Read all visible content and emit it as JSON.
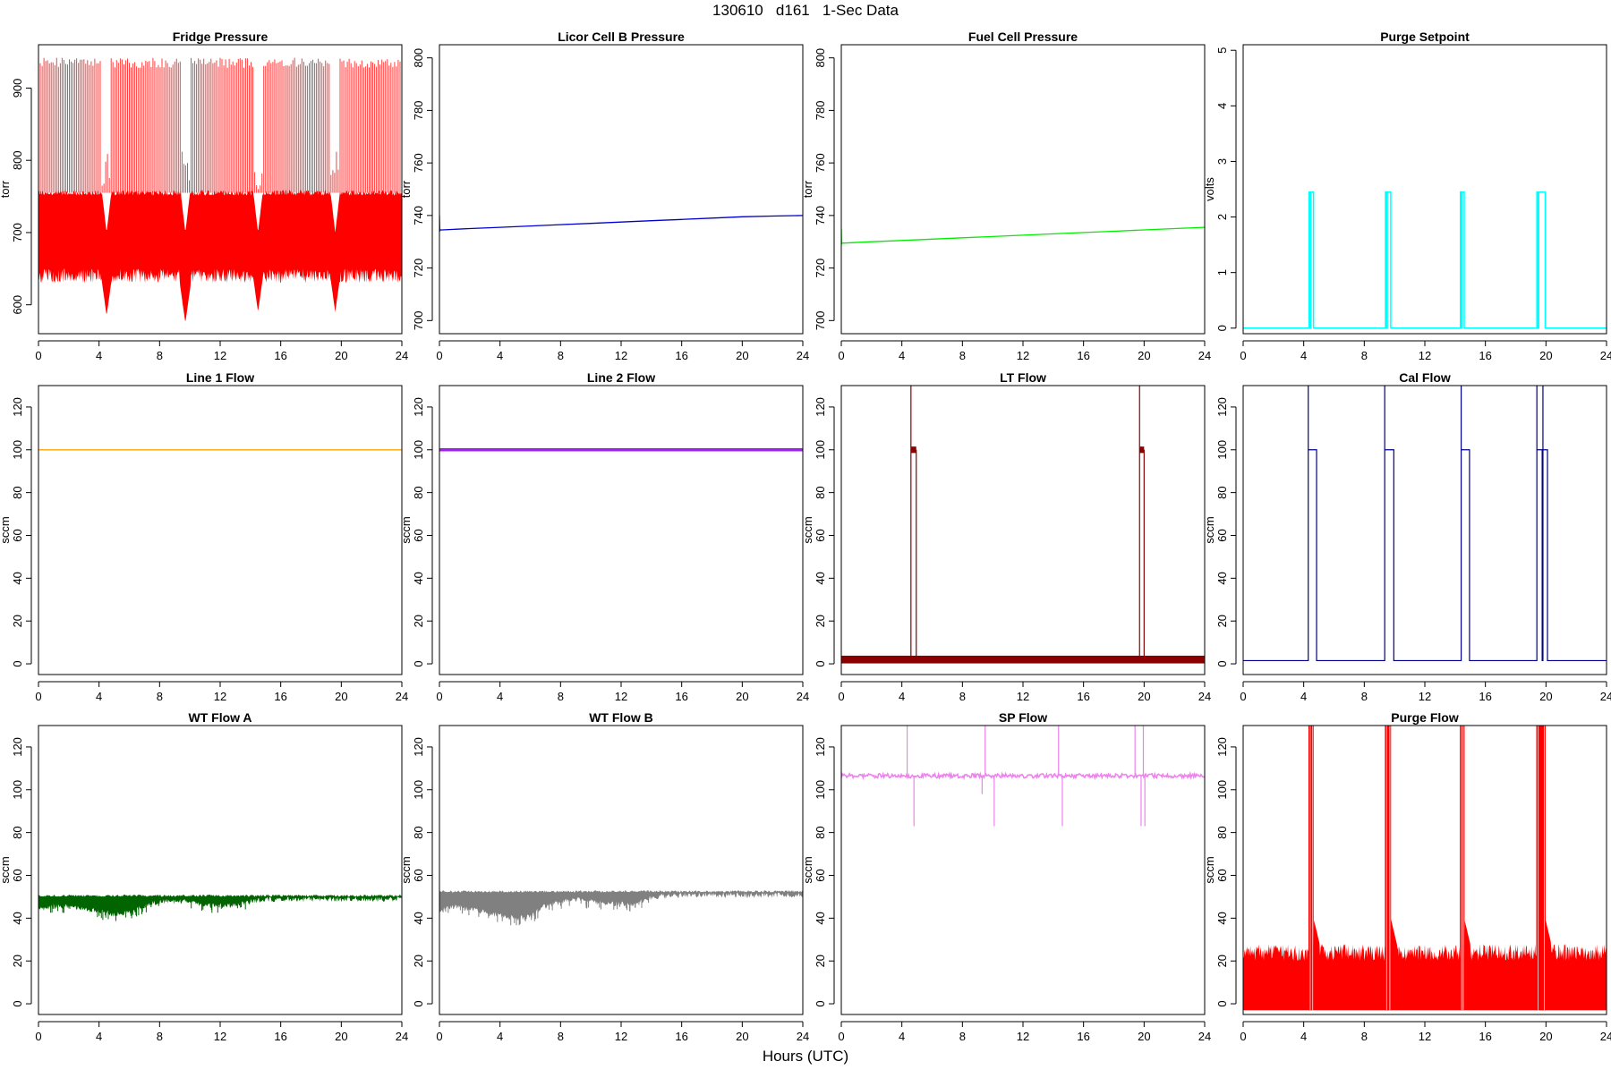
{
  "header": {
    "title": "130610   d161   1-Sec Data"
  },
  "footer": {
    "xlabel": "Hours (UTC)"
  },
  "chart_data": [
    {
      "type": "line",
      "title": "Fridge Pressure",
      "ylabel": "torr",
      "color": "#ff0000",
      "xlim": [
        0,
        24
      ],
      "ylim": [
        560,
        960
      ],
      "xticks": [
        0,
        4,
        8,
        12,
        16,
        20,
        24
      ],
      "yticks": [
        600,
        700,
        800,
        900
      ],
      "series": [
        {
          "render": "oscillating",
          "base_low": 640,
          "base_high": 755,
          "spike_high": 945,
          "dips": [
            [
              4.5,
              585
            ],
            [
              9.7,
              575
            ],
            [
              14.5,
              590
            ],
            [
              19.6,
              590
            ]
          ]
        }
      ]
    },
    {
      "type": "line",
      "title": "Licor Cell B Pressure",
      "ylabel": "torr",
      "color": "#0000cd",
      "xlim": [
        0,
        24
      ],
      "ylim": [
        695,
        805
      ],
      "xticks": [
        0,
        4,
        8,
        12,
        16,
        20,
        24
      ],
      "yticks": [
        700,
        720,
        740,
        760,
        780,
        800
      ],
      "series": [
        {
          "render": "line",
          "x": [
            0,
            0.02,
            0.05,
            0.2,
            2,
            4,
            6,
            8,
            10,
            12,
            14,
            16,
            18,
            20,
            22,
            24
          ],
          "y": [
            740,
            734,
            734.5,
            734.5,
            735,
            735.5,
            736,
            736.5,
            737,
            737.5,
            738,
            738.5,
            739,
            739.5,
            739.8,
            740
          ]
        }
      ]
    },
    {
      "type": "line",
      "title": "Fuel Cell Pressure",
      "ylabel": "torr",
      "color": "#00ee00",
      "xlim": [
        0,
        24
      ],
      "ylim": [
        695,
        805
      ],
      "xticks": [
        0,
        4,
        8,
        12,
        16,
        20,
        24
      ],
      "yticks": [
        700,
        720,
        740,
        760,
        780,
        800
      ],
      "series": [
        {
          "render": "line",
          "x": [
            0,
            0.02,
            0.05,
            0.2,
            2,
            4,
            6,
            8,
            10,
            12,
            14,
            16,
            18,
            20,
            22,
            24
          ],
          "y": [
            735,
            729,
            729.5,
            729.5,
            730,
            730.5,
            731,
            731.5,
            732,
            732.5,
            733,
            733.5,
            734,
            734.5,
            735,
            735.5
          ]
        }
      ]
    },
    {
      "type": "line",
      "title": "Purge Setpoint",
      "ylabel": "volts",
      "color": "#00ffff",
      "xlim": [
        0,
        24
      ],
      "ylim": [
        -0.1,
        5.1
      ],
      "xticks": [
        0,
        4,
        8,
        12,
        16,
        20,
        24
      ],
      "yticks": [
        0,
        1,
        2,
        3,
        4,
        5
      ],
      "series": [
        {
          "render": "pulses",
          "baseline": 0,
          "level": 2.45,
          "pulses": [
            [
              4.35,
              4.65
            ],
            [
              9.4,
              9.75
            ],
            [
              14.35,
              14.6
            ],
            [
              19.4,
              19.95
            ]
          ]
        }
      ]
    },
    {
      "type": "line",
      "title": "Line 1 Flow",
      "ylabel": "sccm",
      "color": "#ffa500",
      "xlim": [
        0,
        24
      ],
      "ylim": [
        -5,
        130
      ],
      "xticks": [
        0,
        4,
        8,
        12,
        16,
        20,
        24
      ],
      "yticks": [
        0,
        20,
        40,
        60,
        80,
        100,
        120
      ],
      "series": [
        {
          "render": "line",
          "x": [
            0,
            24
          ],
          "y": [
            100,
            100
          ]
        }
      ]
    },
    {
      "type": "line",
      "title": "Line 2 Flow",
      "ylabel": "sccm",
      "color": "#a020f0",
      "xlim": [
        0,
        24
      ],
      "ylim": [
        -5,
        130
      ],
      "xticks": [
        0,
        4,
        8,
        12,
        16,
        20,
        24
      ],
      "yticks": [
        0,
        20,
        40,
        60,
        80,
        100,
        120
      ],
      "series": [
        {
          "render": "thickline",
          "x": [
            0,
            24
          ],
          "y": [
            100,
            100
          ]
        }
      ]
    },
    {
      "type": "line",
      "title": "LT Flow",
      "ylabel": "sccm",
      "color": "#8b0000",
      "xlim": [
        0,
        24
      ],
      "ylim": [
        -5,
        130
      ],
      "xticks": [
        0,
        4,
        8,
        12,
        16,
        20,
        24
      ],
      "yticks": [
        0,
        20,
        40,
        60,
        80,
        100,
        120
      ],
      "series": [
        {
          "render": "ltflow",
          "baseline": 2,
          "pulses": [
            [
              4.6,
              4.95
            ],
            [
              19.7,
              20.0
            ]
          ],
          "level": 100,
          "spike": 130
        }
      ]
    },
    {
      "type": "line",
      "title": "Cal Flow",
      "ylabel": "sccm",
      "color": "#00008b",
      "xlim": [
        0,
        24
      ],
      "ylim": [
        -5,
        130
      ],
      "xticks": [
        0,
        4,
        8,
        12,
        16,
        20,
        24
      ],
      "yticks": [
        0,
        20,
        40,
        60,
        80,
        100,
        120
      ],
      "series": [
        {
          "render": "calflow",
          "baseline": 1.5,
          "level": 100,
          "spike": 130,
          "pulses": [
            [
              4.3,
              4.85
            ],
            [
              9.35,
              9.95
            ],
            [
              14.4,
              14.95
            ],
            [
              19.4,
              19.75
            ],
            [
              19.8,
              20.1
            ]
          ]
        }
      ]
    },
    {
      "type": "line",
      "title": "WT Flow A",
      "ylabel": "sccm",
      "color": "#006400",
      "xlim": [
        0,
        24
      ],
      "ylim": [
        -5,
        130
      ],
      "xticks": [
        0,
        4,
        8,
        12,
        16,
        20,
        24
      ],
      "yticks": [
        0,
        20,
        40,
        60,
        80,
        100,
        120
      ],
      "series": [
        {
          "render": "noisyband",
          "upper": 50,
          "lower": [
            [
              0,
              45
            ],
            [
              1,
              47
            ],
            [
              3,
              46
            ],
            [
              5,
              43
            ],
            [
              6,
              44
            ],
            [
              7,
              47
            ],
            [
              8,
              49
            ],
            [
              10,
              49
            ],
            [
              11,
              47
            ],
            [
              13,
              47
            ],
            [
              14,
              49
            ],
            [
              15,
              50
            ],
            [
              24,
              50
            ]
          ]
        }
      ]
    },
    {
      "type": "line",
      "title": "WT Flow B",
      "ylabel": "sccm",
      "color": "#808080",
      "xlim": [
        0,
        24
      ],
      "ylim": [
        -5,
        130
      ],
      "xticks": [
        0,
        4,
        8,
        12,
        16,
        20,
        24
      ],
      "yticks": [
        0,
        20,
        40,
        60,
        80,
        100,
        120
      ],
      "series": [
        {
          "render": "noisyband",
          "upper": 52,
          "lower": [
            [
              0,
              45
            ],
            [
              1,
              47
            ],
            [
              3,
              44
            ],
            [
              5,
              41
            ],
            [
              6,
              42
            ],
            [
              7,
              47
            ],
            [
              9,
              50
            ],
            [
              11,
              48
            ],
            [
              13,
              48
            ],
            [
              14,
              51
            ],
            [
              16,
              52
            ],
            [
              24,
              52
            ]
          ]
        }
      ]
    },
    {
      "type": "line",
      "title": "SP Flow",
      "ylabel": "sccm",
      "color": "#ee82ee",
      "xlim": [
        0,
        24
      ],
      "ylim": [
        -5,
        130
      ],
      "xticks": [
        0,
        4,
        8,
        12,
        16,
        20,
        24
      ],
      "yticks": [
        0,
        20,
        40,
        60,
        80,
        100,
        120
      ],
      "series": [
        {
          "render": "spflow",
          "baseline": 106.5,
          "spikes_up": [
            4.35,
            9.5,
            14.35,
            19.4,
            19.95
          ],
          "spikes_down": [
            [
              4.8,
              83
            ],
            [
              10.1,
              83
            ],
            [
              14.6,
              83
            ],
            [
              19.8,
              83
            ],
            [
              20.05,
              83
            ],
            [
              9.3,
              98
            ]
          ]
        }
      ]
    },
    {
      "type": "line",
      "title": "Purge Flow",
      "ylabel": "sccm",
      "color": "#ff0000",
      "xlim": [
        0,
        24
      ],
      "ylim": [
        -5,
        130
      ],
      "xticks": [
        0,
        4,
        8,
        12,
        16,
        20,
        24
      ],
      "yticks": [
        0,
        20,
        40,
        60,
        80,
        100,
        120
      ],
      "series": [
        {
          "render": "purgeflow",
          "low": -3,
          "high": 26,
          "spike": 130,
          "pulses": [
            [
              4.35,
              4.65
            ],
            [
              9.4,
              9.75
            ],
            [
              14.35,
              14.6
            ],
            [
              19.4,
              19.95
            ]
          ]
        }
      ]
    }
  ]
}
